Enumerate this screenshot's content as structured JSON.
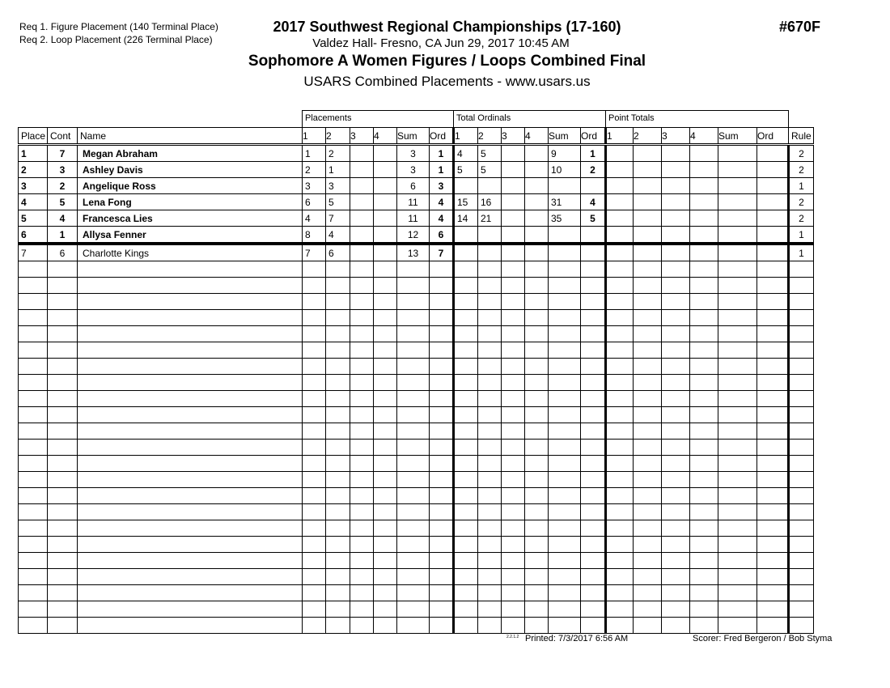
{
  "header": {
    "requirements": [
      "Req  1.  Figure Placement (140 Terminal Place)",
      "Req  2.  Loop Placement (226 Terminal Place)"
    ],
    "event_title": "2017 Southwest Regional Championships (17-160)",
    "venue_line": "Valdez Hall- Fresno, CA  Jun 29, 2017  10:45 AM",
    "event_number": "#670F",
    "category_title": "Sophomore A Women Figures / Loops Combined Final",
    "subtitle": "USARS Combined Placements - www.usars.us"
  },
  "table": {
    "groups": [
      "Placements",
      "Total Ordinals",
      "Point Totals"
    ],
    "columns": [
      "Place",
      "Cont",
      "Name",
      "1",
      "2",
      "3",
      "4",
      "Sum",
      "Ord",
      "1",
      "2",
      "3",
      "4",
      "Sum",
      "Ord",
      "1",
      "2",
      "3",
      "4",
      "Sum",
      "Ord",
      "Rule"
    ],
    "rows": [
      {
        "place": "1",
        "cont": "7",
        "name": "Megan Abraham",
        "p": [
          "1",
          "2",
          "",
          ""
        ],
        "psum": "3",
        "pord": "1",
        "o": [
          "4",
          "5",
          "",
          ""
        ],
        "osum": "9",
        "oord": "1",
        "rule": "2",
        "bold": true
      },
      {
        "place": "2",
        "cont": "3",
        "name": "Ashley Davis",
        "p": [
          "2",
          "1",
          "",
          ""
        ],
        "psum": "3",
        "pord": "1",
        "o": [
          "5",
          "5",
          "",
          ""
        ],
        "osum": "10",
        "oord": "2",
        "rule": "2",
        "bold": true
      },
      {
        "place": "3",
        "cont": "2",
        "name": "Angelique Ross",
        "p": [
          "3",
          "3",
          "",
          ""
        ],
        "psum": "6",
        "pord": "3",
        "o": [
          "",
          "",
          "",
          ""
        ],
        "osum": "",
        "oord": "",
        "rule": "1",
        "bold": true
      },
      {
        "place": "4",
        "cont": "5",
        "name": "Lena Fong",
        "p": [
          "6",
          "5",
          "",
          ""
        ],
        "psum": "11",
        "pord": "4",
        "o": [
          "15",
          "16",
          "",
          ""
        ],
        "osum": "31",
        "oord": "4",
        "rule": "2",
        "bold": true
      },
      {
        "place": "5",
        "cont": "4",
        "name": "Francesca Lies",
        "p": [
          "4",
          "7",
          "",
          ""
        ],
        "psum": "11",
        "pord": "4",
        "o": [
          "14",
          "21",
          "",
          ""
        ],
        "osum": "35",
        "oord": "5",
        "rule": "2",
        "bold": true
      },
      {
        "place": "6",
        "cont": "1",
        "name": "Allysa Fenner",
        "p": [
          "8",
          "4",
          "",
          ""
        ],
        "psum": "12",
        "pord": "6",
        "o": [
          "",
          "",
          "",
          ""
        ],
        "osum": "",
        "oord": "",
        "rule": "1",
        "bold": true
      },
      {
        "place": "7",
        "cont": "6",
        "name": "Charlotte Kings",
        "p": [
          "7",
          "6",
          "",
          ""
        ],
        "psum": "13",
        "pord": "7",
        "o": [
          "",
          "",
          "",
          ""
        ],
        "osum": "",
        "oord": "",
        "rule": "1",
        "bold": false
      }
    ],
    "cutoff_after_place": 6
  },
  "footer": {
    "code": "2.2.1.2",
    "printed": "Printed:  7/3/2017  6:56 AM",
    "scorer": "Scorer:   Fred Bergeron / Bob Styma"
  }
}
